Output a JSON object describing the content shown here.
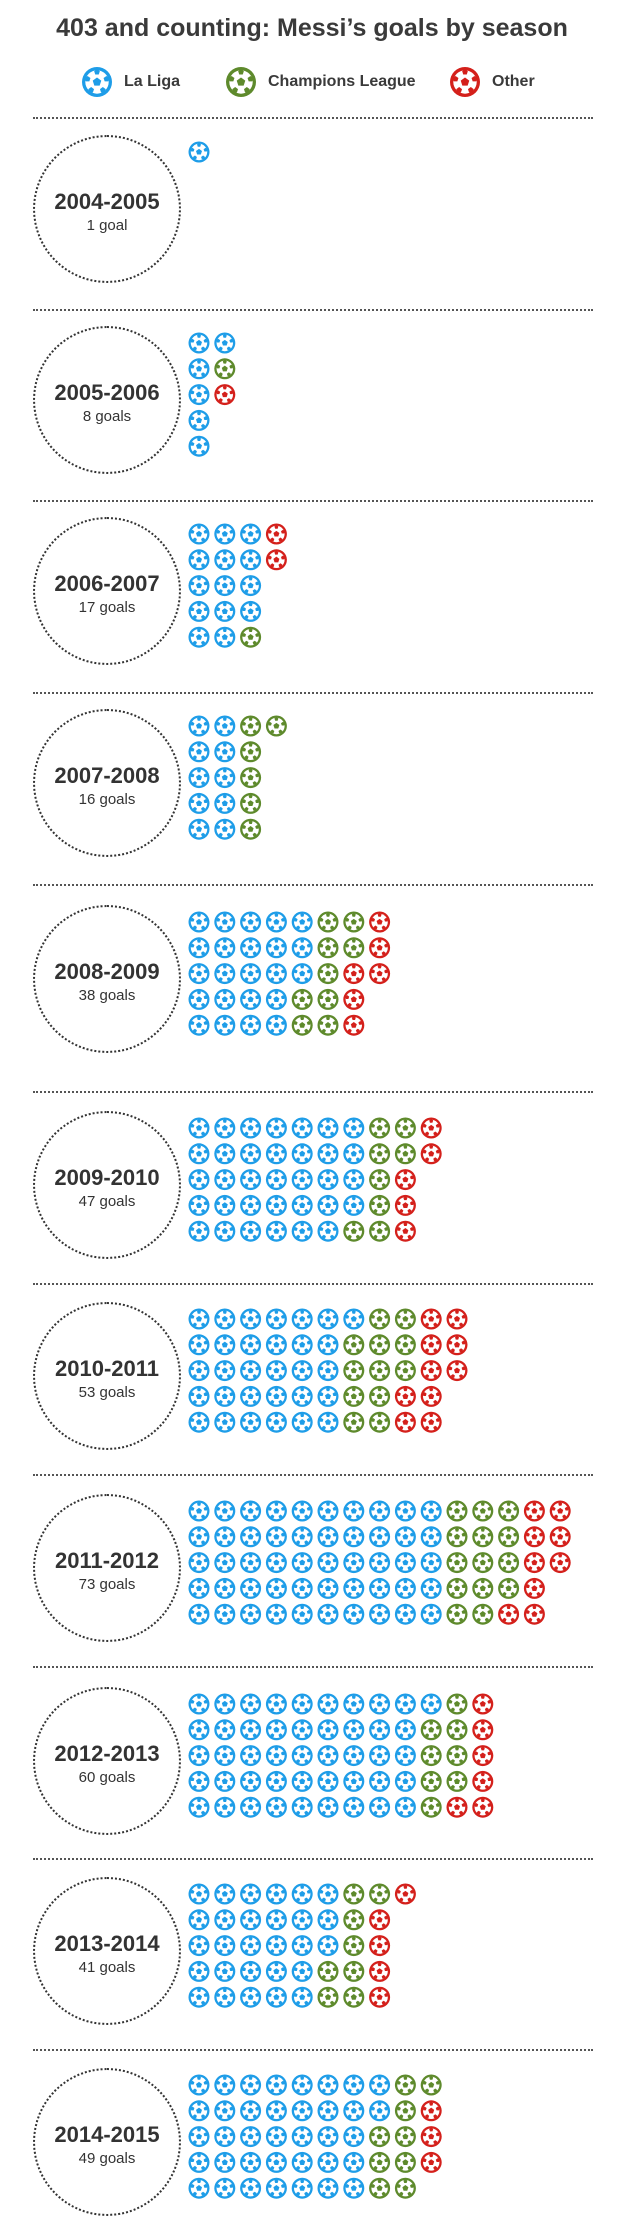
{
  "title": "403 and counting: Messi’s goals by season",
  "legend": [
    {
      "key": "laliga",
      "label": "La Liga",
      "color": "#1e9de8",
      "icon": "football-icon"
    },
    {
      "key": "cl",
      "label": "Champions League",
      "color": "#5e8a2c",
      "icon": "football-icon"
    },
    {
      "key": "other",
      "label": "Other",
      "color": "#d4201b",
      "icon": "football-icon"
    }
  ],
  "chart_data": {
    "type": "table",
    "title": "403 and counting: Messi’s goals by season",
    "series": [
      {
        "name": "La Liga",
        "key": "laliga",
        "values": [
          1,
          6,
          14,
          10,
          23,
          34,
          31,
          50,
          46,
          28,
          37
        ]
      },
      {
        "name": "Champions League",
        "key": "cl",
        "values": [
          0,
          1,
          1,
          6,
          9,
          8,
          12,
          14,
          8,
          8,
          9
        ]
      },
      {
        "name": "Other",
        "key": "other",
        "values": [
          0,
          1,
          2,
          0,
          6,
          5,
          10,
          9,
          6,
          5,
          3
        ]
      }
    ],
    "seasons": [
      {
        "season": "2004-2005",
        "goals_label": "1 goal",
        "total": 1,
        "laliga": 1,
        "cl": 0,
        "other": 0
      },
      {
        "season": "2005-2006",
        "goals_label": "8 goals",
        "total": 8,
        "laliga": 6,
        "cl": 1,
        "other": 1
      },
      {
        "season": "2006-2007",
        "goals_label": "17 goals",
        "total": 17,
        "laliga": 14,
        "cl": 1,
        "other": 2
      },
      {
        "season": "2007-2008",
        "goals_label": "16 goals",
        "total": 16,
        "laliga": 10,
        "cl": 6,
        "other": 0
      },
      {
        "season": "2008-2009",
        "goals_label": "38 goals",
        "total": 38,
        "laliga": 23,
        "cl": 9,
        "other": 6
      },
      {
        "season": "2009-2010",
        "goals_label": "47 goals",
        "total": 47,
        "laliga": 34,
        "cl": 8,
        "other": 5
      },
      {
        "season": "2010-2011",
        "goals_label": "53 goals",
        "total": 53,
        "laliga": 31,
        "cl": 12,
        "other": 10
      },
      {
        "season": "2011-2012",
        "goals_label": "73 goals",
        "total": 73,
        "laliga": 50,
        "cl": 14,
        "other": 9
      },
      {
        "season": "2012-2013",
        "goals_label": "60 goals",
        "total": 60,
        "laliga": 46,
        "cl": 8,
        "other": 6
      },
      {
        "season": "2013-2014",
        "goals_label": "41 goals",
        "total": 41,
        "laliga": 28,
        "cl": 8,
        "other": 5
      },
      {
        "season": "2014-2015",
        "goals_label": "49 goals",
        "total": 49,
        "laliga": 37,
        "cl": 9,
        "other": 3
      }
    ]
  }
}
